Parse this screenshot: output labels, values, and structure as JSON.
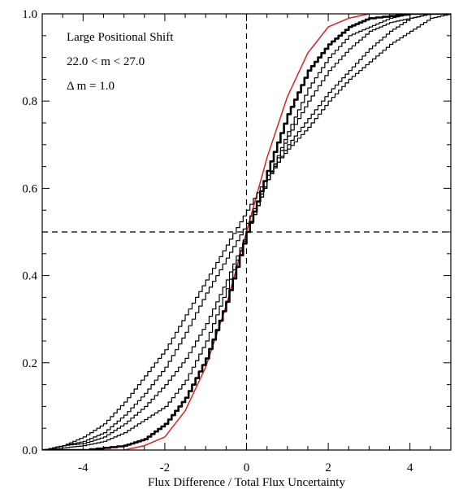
{
  "chart_data": {
    "type": "line",
    "title": "",
    "xlabel": "Flux Difference / Total Flux Uncertainty",
    "ylabel": "",
    "xlim": [
      -5,
      5
    ],
    "ylim": [
      0,
      1
    ],
    "x_ticks": [
      -4,
      -2,
      0,
      2,
      4
    ],
    "x_tick_labels": [
      "-4",
      "-2",
      "0",
      "2",
      "4"
    ],
    "y_ticks": [
      0,
      0.2,
      0.4,
      0.6,
      0.8,
      1.0
    ],
    "y_tick_labels": [
      "0.0",
      "0.2",
      "0.4",
      "0.6",
      "0.8",
      "1.0"
    ],
    "grid": false,
    "annotations": [
      "Large Positional Shift",
      "22.0 < m < 27.0",
      "Δ m = 1.0"
    ],
    "reference_lines": [
      {
        "orientation": "vertical",
        "x": 0,
        "style": "dashed"
      },
      {
        "orientation": "horizontal",
        "y": 0.5,
        "style": "dashed"
      }
    ],
    "series": [
      {
        "color": "#e02020",
        "line_width": 1.5,
        "x": [
          -5,
          -4,
          -3,
          -2.5,
          -2,
          -1.5,
          -1,
          -0.5,
          0,
          0.5,
          1,
          1.5,
          2,
          2.5,
          3,
          4,
          5
        ],
        "y": [
          0,
          0,
          0,
          0.01,
          0.03,
          0.09,
          0.19,
          0.33,
          0.5,
          0.67,
          0.81,
          0.91,
          0.97,
          0.99,
          1.0,
          1.0,
          1.0
        ]
      },
      {
        "color": "#000000",
        "line_width": 2.6,
        "x": [
          -5,
          -4,
          -3,
          -2.5,
          -2,
          -1.5,
          -1,
          -0.5,
          0,
          0.5,
          1,
          1.5,
          2,
          2.5,
          3,
          4,
          5
        ],
        "y": [
          0,
          0,
          0.01,
          0.025,
          0.06,
          0.12,
          0.21,
          0.34,
          0.5,
          0.64,
          0.77,
          0.87,
          0.93,
          0.97,
          0.99,
          1.0,
          1.0
        ]
      },
      {
        "color": "#000000",
        "line_width": 1.2,
        "x": [
          -5,
          -4.5,
          -4,
          -3.5,
          -3,
          -2.5,
          -2,
          -1.5,
          -1,
          -0.5,
          0,
          0.5,
          1,
          1.5,
          2,
          2.5,
          3,
          3.5,
          4,
          4.5,
          5
        ],
        "y": [
          0,
          0.005,
          0.01,
          0.02,
          0.04,
          0.07,
          0.1,
          0.16,
          0.25,
          0.37,
          0.5,
          0.62,
          0.73,
          0.83,
          0.9,
          0.95,
          0.97,
          0.99,
          1.0,
          1.0,
          1.0
        ]
      },
      {
        "color": "#000000",
        "line_width": 1.2,
        "x": [
          -5,
          -4.5,
          -4,
          -3.5,
          -3,
          -2.5,
          -2,
          -1.5,
          -1,
          -0.5,
          0,
          0.5,
          1,
          1.5,
          2,
          2.5,
          3,
          3.5,
          4,
          4.5,
          5
        ],
        "y": [
          0,
          0.01,
          0.015,
          0.03,
          0.06,
          0.1,
          0.15,
          0.21,
          0.29,
          0.39,
          0.5,
          0.62,
          0.72,
          0.8,
          0.87,
          0.92,
          0.96,
          0.98,
          0.99,
          1.0,
          1.0
        ]
      },
      {
        "color": "#000000",
        "line_width": 1.2,
        "x": [
          -5,
          -4.5,
          -4,
          -3.5,
          -3,
          -2.5,
          -2,
          -1.5,
          -1,
          -0.5,
          0,
          0.5,
          1,
          1.5,
          2,
          2.5,
          3,
          3.5,
          4,
          4.5,
          5
        ],
        "y": [
          0,
          0.01,
          0.02,
          0.04,
          0.08,
          0.13,
          0.19,
          0.27,
          0.36,
          0.44,
          0.52,
          0.62,
          0.7,
          0.76,
          0.82,
          0.87,
          0.92,
          0.96,
          0.99,
          1.0,
          1.0
        ]
      },
      {
        "color": "#000000",
        "line_width": 1.2,
        "x": [
          -5,
          -4.5,
          -4,
          -3.5,
          -3,
          -2.5,
          -2,
          -1.5,
          -1,
          -0.5,
          0,
          0.5,
          1,
          1.5,
          2,
          2.5,
          3,
          3.5,
          4,
          4.5,
          5
        ],
        "y": [
          0,
          0.01,
          0.03,
          0.06,
          0.11,
          0.17,
          0.23,
          0.31,
          0.39,
          0.47,
          0.55,
          0.63,
          0.69,
          0.74,
          0.8,
          0.85,
          0.89,
          0.93,
          0.96,
          0.99,
          1.0
        ]
      }
    ]
  }
}
